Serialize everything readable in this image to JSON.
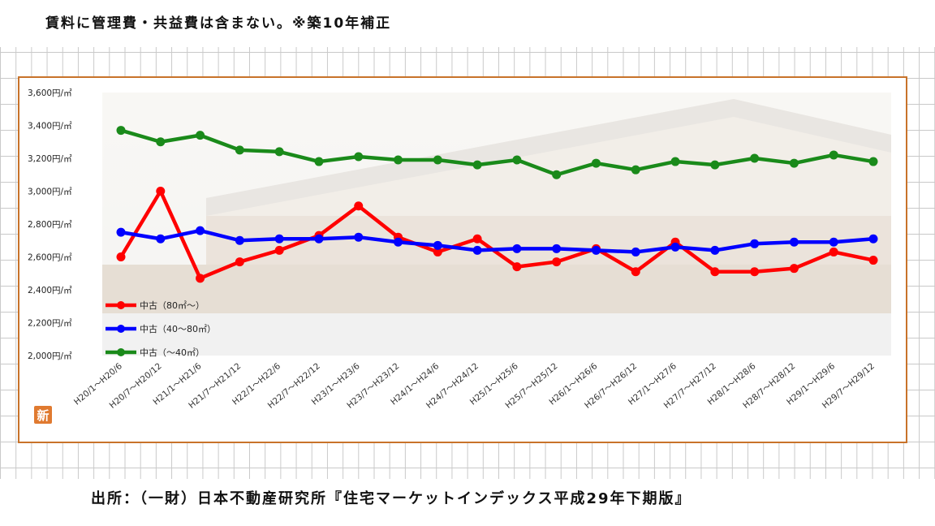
{
  "header": {
    "note": "賃料に管理費・共益費は含まない。※築10年補正"
  },
  "footer": {
    "source": "出所：（一財）日本不動産研究所『住宅マーケットインデックス平成29年下期版』"
  },
  "badge": {
    "label": "新",
    "color": "#e07a30"
  },
  "chart_data": {
    "type": "line",
    "title": "",
    "xlabel": "",
    "ylabel": "",
    "ylim": [
      2000,
      3600
    ],
    "yticks": [
      2000,
      2200,
      2400,
      2600,
      2800,
      3000,
      3200,
      3400,
      3600
    ],
    "ytick_labels": [
      "2,000円/㎡",
      "2,200円/㎡",
      "2,400円/㎡",
      "2,600円/㎡",
      "2,800円/㎡",
      "3,000円/㎡",
      "3,200円/㎡",
      "3,400円/㎡",
      "3,600円/㎡"
    ],
    "grid": false,
    "legend_position": "bottom-left",
    "categories": [
      "H20/1～H20/6",
      "H20/7～H20/12",
      "H21/1～H21/6",
      "H21/7～H21/12",
      "H22/1～H22/6",
      "H22/7～H22/12",
      "H23/1～H23/6",
      "H23/7～H23/12",
      "H24/1～H24/6",
      "H24/7～H24/12",
      "H25/1～H25/6",
      "H25/7～H25/12",
      "H26/1～H26/6",
      "H26/7～H26/12",
      "H27/1～H27/6",
      "H27/7～H27/12",
      "H28/1～H28/6",
      "H28/7～H28/12",
      "H29/1～H29/6",
      "H29/7～H29/12"
    ],
    "series": [
      {
        "name": "中古（80㎡～）",
        "color": "#ff0000",
        "values": [
          2600,
          3000,
          2470,
          2570,
          2640,
          2730,
          2910,
          2720,
          2630,
          2710,
          2540,
          2570,
          2650,
          2510,
          2690,
          2510,
          2510,
          2530,
          2630,
          2580
        ]
      },
      {
        "name": "中古（40～80㎡）",
        "color": "#0000ff",
        "values": [
          2750,
          2710,
          2760,
          2700,
          2710,
          2710,
          2720,
          2690,
          2670,
          2640,
          2650,
          2650,
          2640,
          2630,
          2660,
          2640,
          2680,
          2690,
          2690,
          2710
        ]
      },
      {
        "name": "中古（～40㎡）",
        "color": "#1a8a1a",
        "values": [
          3370,
          3300,
          3340,
          3250,
          3240,
          3180,
          3210,
          3190,
          3190,
          3160,
          3190,
          3100,
          3170,
          3130,
          3180,
          3160,
          3200,
          3170,
          3220,
          3180
        ]
      }
    ]
  }
}
